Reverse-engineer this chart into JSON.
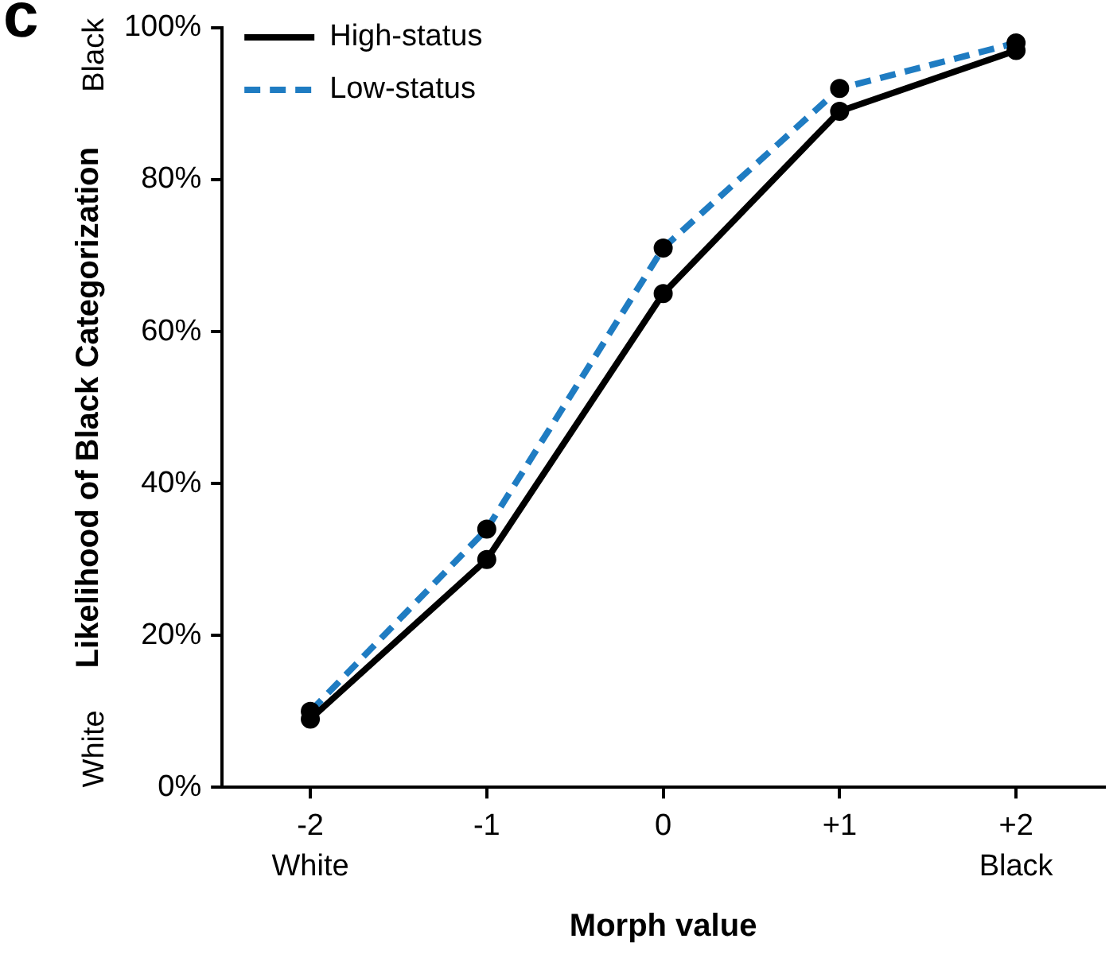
{
  "chart_data": {
    "type": "line",
    "xlabel": "Morph value",
    "ylabel": "Likelihood of Black Categorization",
    "categories": [
      "-2",
      "-1",
      "0",
      "+1",
      "+2"
    ],
    "series": [
      {
        "name": "High-status",
        "color": "#000000",
        "values": [
          9,
          30,
          65,
          89,
          97
        ],
        "line_style": "solid"
      },
      {
        "name": "Low-status",
        "color": "#1f7cc2",
        "values": [
          10,
          34,
          71,
          92,
          98
        ],
        "line_style": "dashed"
      }
    ],
    "ylim": [
      0,
      100
    ],
    "yticks": [
      {
        "value": 0,
        "label": "0%"
      },
      {
        "value": 20,
        "label": "20%"
      },
      {
        "value": 40,
        "label": "40%"
      },
      {
        "value": 60,
        "label": "60%"
      },
      {
        "value": 80,
        "label": "80%"
      },
      {
        "value": 100,
        "label": "100%"
      }
    ],
    "grid": false,
    "legend": "top left",
    "marker": "circle",
    "annotations": [
      "c",
      "White",
      "Black",
      "Black",
      "White"
    ]
  }
}
